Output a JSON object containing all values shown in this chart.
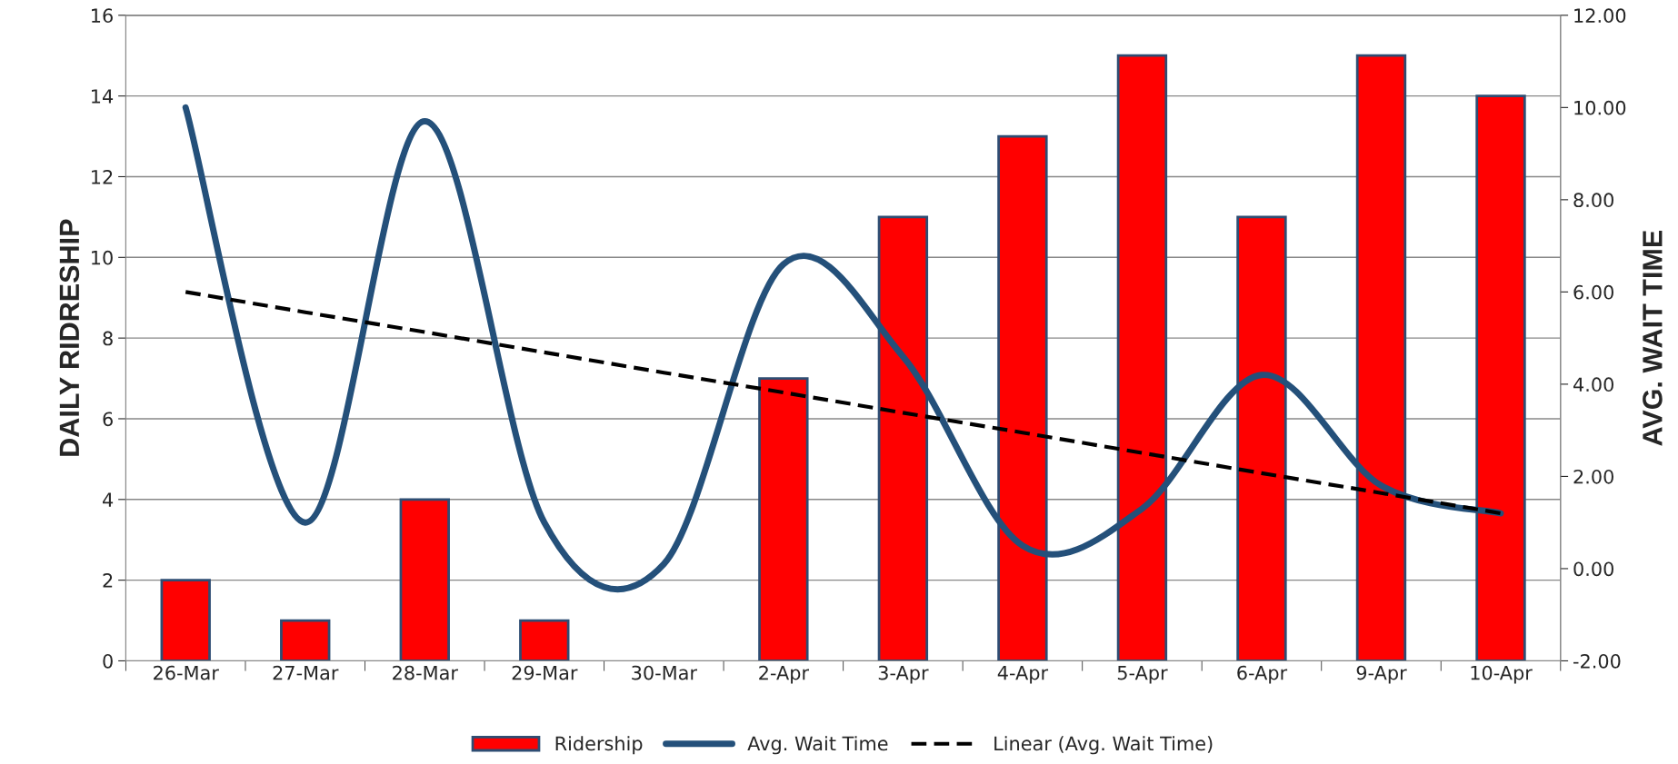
{
  "chart_data": {
    "type": "bar",
    "ylabel": "DAILY RIDRESHIP",
    "y2label": "AVG. WAIT TIME",
    "categories": [
      "26-Mar",
      "27-Mar",
      "28-Mar",
      "29-Mar",
      "30-Mar",
      "2-Apr",
      "3-Apr",
      "4-Apr",
      "5-Apr",
      "6-Apr",
      "9-Apr",
      "10-Apr"
    ],
    "series": [
      {
        "name": "Ridership",
        "color": "#ff0000",
        "values": [
          2,
          1,
          4,
          1,
          0,
          7,
          11,
          13,
          15,
          11,
          15,
          14
        ]
      },
      {
        "name": "Avg. Wait Time",
        "type": "line",
        "axis": "y2",
        "color": "#24507a",
        "line_style": "solid",
        "values": [
          10.0,
          1.0,
          9.7,
          1.0,
          0.1,
          6.6,
          4.6,
          0.5,
          1.3,
          4.2,
          1.8,
          1.2
        ]
      },
      {
        "name": "Linear (Avg. Wait Time)",
        "type": "line",
        "axis": "y2",
        "color": "#000000",
        "line_style": "dashed",
        "values": [
          6.0,
          5.56,
          5.13,
          4.69,
          4.25,
          3.82,
          3.38,
          2.95,
          2.51,
          2.07,
          1.64,
          1.2
        ]
      }
    ],
    "ylim": [
      0,
      16
    ],
    "yticks": [
      0,
      2,
      4,
      6,
      8,
      10,
      12,
      14,
      16
    ],
    "y2lim": [
      -2,
      12
    ],
    "y2ticks": [
      {
        "value": -2,
        "label": "-2.00"
      },
      {
        "value": 0,
        "label": "0.00"
      },
      {
        "value": 2,
        "label": "2.00"
      },
      {
        "value": 4,
        "label": "4.00"
      },
      {
        "value": 6,
        "label": "6.00"
      },
      {
        "value": 8,
        "label": "8.00"
      },
      {
        "value": 10,
        "label": "10.00"
      },
      {
        "value": 12,
        "label": "12.00"
      }
    ],
    "grid": "y",
    "legend": "bottom",
    "marker": "none"
  }
}
